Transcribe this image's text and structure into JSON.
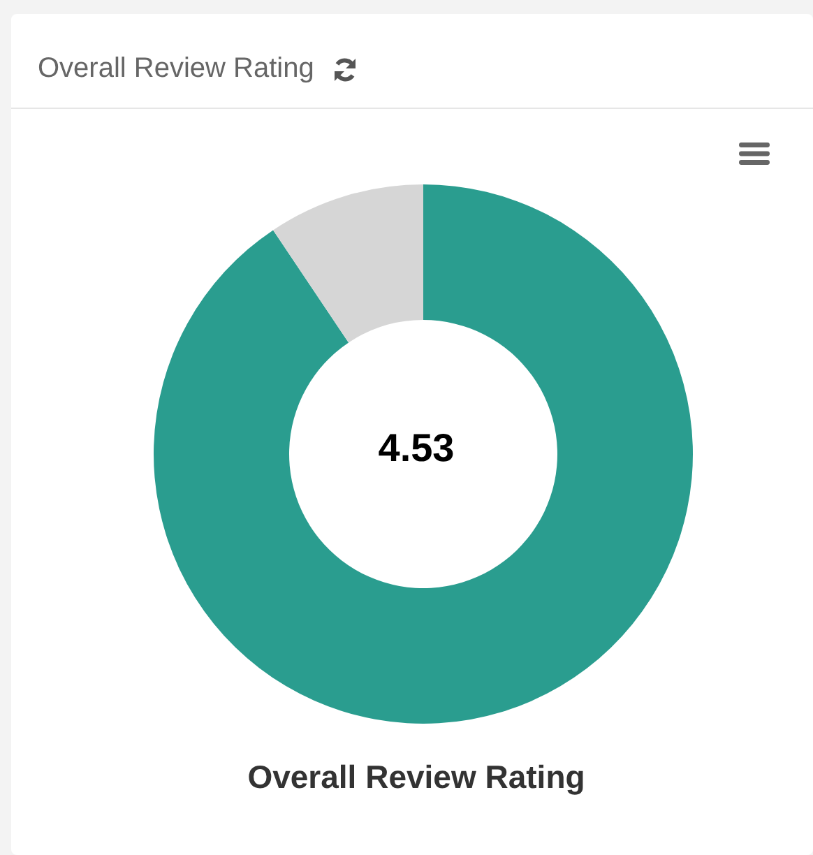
{
  "chart_data": {
    "type": "donut",
    "title": "Overall Review Rating",
    "annotations": [
      "Overall Review Rating",
      "4.53"
    ],
    "categories": [
      null,
      null
    ],
    "values": [
      90.6,
      9.4
    ],
    "colors": [
      "#2a9d8f",
      "#d6d6d6"
    ]
  }
}
